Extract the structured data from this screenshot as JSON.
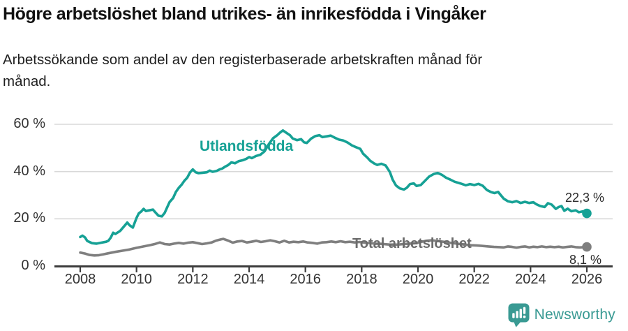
{
  "title": "Högre arbetslöshet bland utrikes- än inrikesfödda i Vingåker",
  "subtitle": {
    "line1": "Arbetssökande som andel av den registerbaserade arbetskraften månad för",
    "line2": "månad."
  },
  "footer": {
    "brand": "Newsworthy"
  },
  "colors": {
    "teal": "#16A195",
    "gray_line": "#7F7F7F",
    "gray_label": "#6B6B6B",
    "axis": "#3C3C3C",
    "grid": "#D8D8D8",
    "logo": "#399A93"
  },
  "chart_data": {
    "type": "line",
    "title": "Högre arbetslöshet bland utrikes- än inrikesfödda i Vingåker",
    "subtitle": "Arbetssökande som andel av den registerbaserade arbetskraften månad för månad.",
    "xlabel": "",
    "ylabel": "",
    "ylim": [
      0,
      62
    ],
    "xlim": [
      2008,
      2026.9
    ],
    "grid": "horizontal",
    "legend_position": "inline-labels",
    "x_tick_years": [
      2008,
      2010,
      2012,
      2014,
      2016,
      2018,
      2020,
      2022,
      2024,
      2026
    ],
    "x_ticks": [
      "2008",
      "2010",
      "2012",
      "2014",
      "2016",
      "2018",
      "2020",
      "2022",
      "2024",
      "2026"
    ],
    "y_tick_values": [
      0,
      20,
      40,
      60
    ],
    "y_ticks": [
      "0 %",
      "20 %",
      "40 %",
      "60 %"
    ],
    "series": [
      {
        "name": "Utlandsfödda",
        "color": "#16A195",
        "end_label": "22,3 %",
        "end_value": 22.3,
        "points": [
          [
            2008.0,
            12.3
          ],
          [
            2008.08,
            12.9
          ],
          [
            2008.17,
            12.1
          ],
          [
            2008.25,
            10.6
          ],
          [
            2008.42,
            9.7
          ],
          [
            2008.58,
            9.5
          ],
          [
            2008.75,
            9.9
          ],
          [
            2008.92,
            10.3
          ],
          [
            2009.0,
            10.7
          ],
          [
            2009.08,
            12.0
          ],
          [
            2009.17,
            14.1
          ],
          [
            2009.25,
            13.6
          ],
          [
            2009.42,
            14.9
          ],
          [
            2009.58,
            17.1
          ],
          [
            2009.67,
            18.4
          ],
          [
            2009.75,
            17.3
          ],
          [
            2009.87,
            16.3
          ],
          [
            2010.0,
            20.4
          ],
          [
            2010.08,
            22.3
          ],
          [
            2010.17,
            23.1
          ],
          [
            2010.25,
            24.2
          ],
          [
            2010.33,
            23.3
          ],
          [
            2010.5,
            23.7
          ],
          [
            2010.58,
            23.9
          ],
          [
            2010.67,
            22.7
          ],
          [
            2010.78,
            21.3
          ],
          [
            2010.9,
            21.0
          ],
          [
            2011.0,
            22.5
          ],
          [
            2011.08,
            24.6
          ],
          [
            2011.17,
            27.0
          ],
          [
            2011.3,
            28.8
          ],
          [
            2011.4,
            31.4
          ],
          [
            2011.5,
            33.1
          ],
          [
            2011.6,
            34.4
          ],
          [
            2011.7,
            36.1
          ],
          [
            2011.8,
            37.4
          ],
          [
            2011.9,
            39.6
          ],
          [
            2012.0,
            40.9
          ],
          [
            2012.1,
            39.7
          ],
          [
            2012.2,
            39.3
          ],
          [
            2012.35,
            39.5
          ],
          [
            2012.5,
            39.7
          ],
          [
            2012.6,
            40.4
          ],
          [
            2012.7,
            39.9
          ],
          [
            2012.85,
            40.3
          ],
          [
            2012.95,
            40.9
          ],
          [
            2013.05,
            41.3
          ],
          [
            2013.15,
            42.1
          ],
          [
            2013.25,
            42.7
          ],
          [
            2013.37,
            43.9
          ],
          [
            2013.5,
            43.5
          ],
          [
            2013.63,
            44.4
          ],
          [
            2013.78,
            44.8
          ],
          [
            2013.9,
            45.4
          ],
          [
            2014.0,
            46.1
          ],
          [
            2014.1,
            45.7
          ],
          [
            2014.25,
            46.6
          ],
          [
            2014.4,
            47.1
          ],
          [
            2014.55,
            48.6
          ],
          [
            2014.7,
            51.6
          ],
          [
            2014.85,
            54.1
          ],
          [
            2015.0,
            55.4
          ],
          [
            2015.1,
            56.5
          ],
          [
            2015.2,
            57.4
          ],
          [
            2015.3,
            56.6
          ],
          [
            2015.45,
            55.4
          ],
          [
            2015.55,
            54.0
          ],
          [
            2015.7,
            53.3
          ],
          [
            2015.85,
            53.7
          ],
          [
            2015.95,
            52.4
          ],
          [
            2016.05,
            52.1
          ],
          [
            2016.2,
            53.9
          ],
          [
            2016.35,
            55.0
          ],
          [
            2016.5,
            55.4
          ],
          [
            2016.6,
            54.6
          ],
          [
            2016.75,
            54.9
          ],
          [
            2016.9,
            55.2
          ],
          [
            2017.05,
            54.3
          ],
          [
            2017.2,
            53.5
          ],
          [
            2017.35,
            53.1
          ],
          [
            2017.5,
            52.3
          ],
          [
            2017.65,
            51.1
          ],
          [
            2017.8,
            50.3
          ],
          [
            2017.95,
            49.6
          ],
          [
            2018.05,
            47.6
          ],
          [
            2018.2,
            45.9
          ],
          [
            2018.3,
            44.6
          ],
          [
            2018.45,
            43.4
          ],
          [
            2018.55,
            42.8
          ],
          [
            2018.7,
            43.3
          ],
          [
            2018.85,
            42.6
          ],
          [
            2019.0,
            39.8
          ],
          [
            2019.1,
            36.6
          ],
          [
            2019.22,
            34.1
          ],
          [
            2019.35,
            32.9
          ],
          [
            2019.5,
            32.4
          ],
          [
            2019.6,
            33.1
          ],
          [
            2019.72,
            34.7
          ],
          [
            2019.85,
            35.0
          ],
          [
            2019.95,
            33.9
          ],
          [
            2020.1,
            34.3
          ],
          [
            2020.25,
            36.1
          ],
          [
            2020.4,
            37.9
          ],
          [
            2020.55,
            38.9
          ],
          [
            2020.7,
            39.4
          ],
          [
            2020.85,
            38.6
          ],
          [
            2021.0,
            37.4
          ],
          [
            2021.15,
            36.6
          ],
          [
            2021.3,
            35.7
          ],
          [
            2021.5,
            35.0
          ],
          [
            2021.7,
            34.2
          ],
          [
            2021.85,
            34.7
          ],
          [
            2022.0,
            34.3
          ],
          [
            2022.15,
            34.8
          ],
          [
            2022.3,
            34.0
          ],
          [
            2022.45,
            32.2
          ],
          [
            2022.6,
            31.3
          ],
          [
            2022.72,
            30.9
          ],
          [
            2022.85,
            31.4
          ],
          [
            2022.95,
            29.9
          ],
          [
            2023.05,
            28.5
          ],
          [
            2023.2,
            27.4
          ],
          [
            2023.35,
            27.0
          ],
          [
            2023.5,
            27.5
          ],
          [
            2023.65,
            26.7
          ],
          [
            2023.8,
            27.2
          ],
          [
            2023.95,
            26.7
          ],
          [
            2024.1,
            27.0
          ],
          [
            2024.2,
            26.2
          ],
          [
            2024.35,
            25.4
          ],
          [
            2024.5,
            25.0
          ],
          [
            2024.62,
            26.6
          ],
          [
            2024.75,
            26.0
          ],
          [
            2024.9,
            24.2
          ],
          [
            2025.0,
            25.0
          ],
          [
            2025.1,
            25.4
          ],
          [
            2025.2,
            23.4
          ],
          [
            2025.32,
            24.3
          ],
          [
            2025.45,
            23.2
          ],
          [
            2025.6,
            23.6
          ],
          [
            2025.72,
            22.8
          ],
          [
            2025.85,
            23.1
          ],
          [
            2026.0,
            22.3
          ]
        ]
      },
      {
        "name": "Total arbetslöshet",
        "color": "#7F7F7F",
        "end_label": "8,1 %",
        "end_value": 8.1,
        "points": [
          [
            2008.0,
            5.7
          ],
          [
            2008.17,
            5.3
          ],
          [
            2008.33,
            4.7
          ],
          [
            2008.5,
            4.5
          ],
          [
            2008.67,
            4.6
          ],
          [
            2008.83,
            5.0
          ],
          [
            2009.0,
            5.4
          ],
          [
            2009.25,
            6.0
          ],
          [
            2009.5,
            6.5
          ],
          [
            2009.75,
            7.0
          ],
          [
            2010.0,
            7.7
          ],
          [
            2010.25,
            8.3
          ],
          [
            2010.5,
            8.9
          ],
          [
            2010.67,
            9.4
          ],
          [
            2010.83,
            10.0
          ],
          [
            2011.0,
            9.3
          ],
          [
            2011.17,
            9.1
          ],
          [
            2011.33,
            9.5
          ],
          [
            2011.5,
            9.8
          ],
          [
            2011.67,
            9.5
          ],
          [
            2011.83,
            9.9
          ],
          [
            2012.0,
            10.1
          ],
          [
            2012.17,
            9.7
          ],
          [
            2012.33,
            9.3
          ],
          [
            2012.5,
            9.6
          ],
          [
            2012.67,
            10.0
          ],
          [
            2012.83,
            10.8
          ],
          [
            2013.0,
            11.3
          ],
          [
            2013.08,
            11.5
          ],
          [
            2013.25,
            10.8
          ],
          [
            2013.42,
            9.9
          ],
          [
            2013.58,
            10.4
          ],
          [
            2013.75,
            10.6
          ],
          [
            2013.92,
            10.0
          ],
          [
            2014.08,
            10.3
          ],
          [
            2014.25,
            10.7
          ],
          [
            2014.42,
            10.2
          ],
          [
            2014.58,
            10.5
          ],
          [
            2014.75,
            10.9
          ],
          [
            2014.92,
            10.5
          ],
          [
            2015.08,
            10.0
          ],
          [
            2015.25,
            10.7
          ],
          [
            2015.42,
            10.0
          ],
          [
            2015.58,
            10.3
          ],
          [
            2015.75,
            10.1
          ],
          [
            2015.92,
            10.4
          ],
          [
            2016.08,
            10.0
          ],
          [
            2016.25,
            9.8
          ],
          [
            2016.42,
            9.5
          ],
          [
            2016.58,
            10.0
          ],
          [
            2016.75,
            10.1
          ],
          [
            2016.92,
            10.4
          ],
          [
            2017.08,
            10.1
          ],
          [
            2017.25,
            10.5
          ],
          [
            2017.42,
            10.1
          ],
          [
            2017.58,
            10.3
          ],
          [
            2017.75,
            10.0
          ],
          [
            2017.92,
            10.2
          ],
          [
            2018.1,
            9.9
          ],
          [
            2018.3,
            9.7
          ],
          [
            2018.5,
            9.5
          ],
          [
            2018.7,
            9.4
          ],
          [
            2018.9,
            9.2
          ],
          [
            2019.1,
            9.0
          ],
          [
            2019.3,
            9.1
          ],
          [
            2019.5,
            9.3
          ],
          [
            2019.7,
            9.5
          ],
          [
            2019.9,
            9.7
          ],
          [
            2020.1,
            10.2
          ],
          [
            2020.3,
            10.7
          ],
          [
            2020.5,
            10.9
          ],
          [
            2020.7,
            10.6
          ],
          [
            2020.9,
            10.3
          ],
          [
            2021.1,
            9.9
          ],
          [
            2021.3,
            9.6
          ],
          [
            2021.5,
            9.3
          ],
          [
            2021.7,
            9.0
          ],
          [
            2021.9,
            8.8
          ],
          [
            2022.1,
            8.7
          ],
          [
            2022.3,
            8.5
          ],
          [
            2022.5,
            8.3
          ],
          [
            2022.7,
            8.1
          ],
          [
            2022.9,
            8.0
          ],
          [
            2023.05,
            7.9
          ],
          [
            2023.2,
            8.3
          ],
          [
            2023.35,
            8.1
          ],
          [
            2023.5,
            7.8
          ],
          [
            2023.65,
            8.1
          ],
          [
            2023.8,
            8.3
          ],
          [
            2023.95,
            7.9
          ],
          [
            2024.1,
            8.2
          ],
          [
            2024.25,
            8.0
          ],
          [
            2024.4,
            8.3
          ],
          [
            2024.55,
            8.0
          ],
          [
            2024.7,
            8.2
          ],
          [
            2024.85,
            8.0
          ],
          [
            2025.0,
            8.2
          ],
          [
            2025.15,
            7.9
          ],
          [
            2025.3,
            8.1
          ],
          [
            2025.45,
            8.3
          ],
          [
            2025.6,
            8.0
          ],
          [
            2025.75,
            7.9
          ],
          [
            2025.9,
            8.0
          ],
          [
            2026.0,
            8.1
          ]
        ]
      }
    ]
  }
}
